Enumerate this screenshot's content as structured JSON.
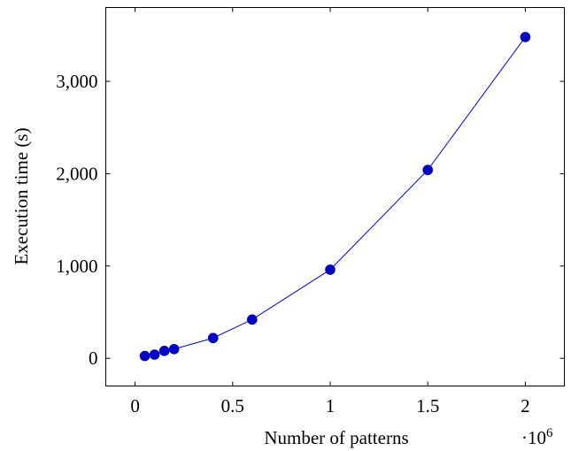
{
  "chart_data": {
    "type": "line",
    "title": "",
    "xlabel": "Number of patterns",
    "ylabel": "Execution time (s)",
    "x_multiplier": {
      "base": "·10",
      "exponent": "6"
    },
    "xlim": [
      -0.15,
      2.2
    ],
    "ylim": [
      -300,
      3800
    ],
    "xticks": [
      0,
      0.5,
      1,
      1.5,
      2
    ],
    "xtick_labels": [
      "0",
      "0.5",
      "1",
      "1.5",
      "2"
    ],
    "yticks": [
      0,
      1000,
      2000,
      3000
    ],
    "ytick_labels": [
      "0",
      "1,000",
      "2,000",
      "3,000"
    ],
    "grid": false,
    "legend": "none",
    "series": [
      {
        "color": "#0000ff",
        "marker": "circle",
        "x": [
          0.05,
          0.1,
          0.15,
          0.2,
          0.4,
          0.6,
          1.0,
          1.5,
          2.0
        ],
        "y": [
          25,
          40,
          80,
          100,
          220,
          420,
          960,
          2040,
          3480
        ]
      }
    ]
  }
}
